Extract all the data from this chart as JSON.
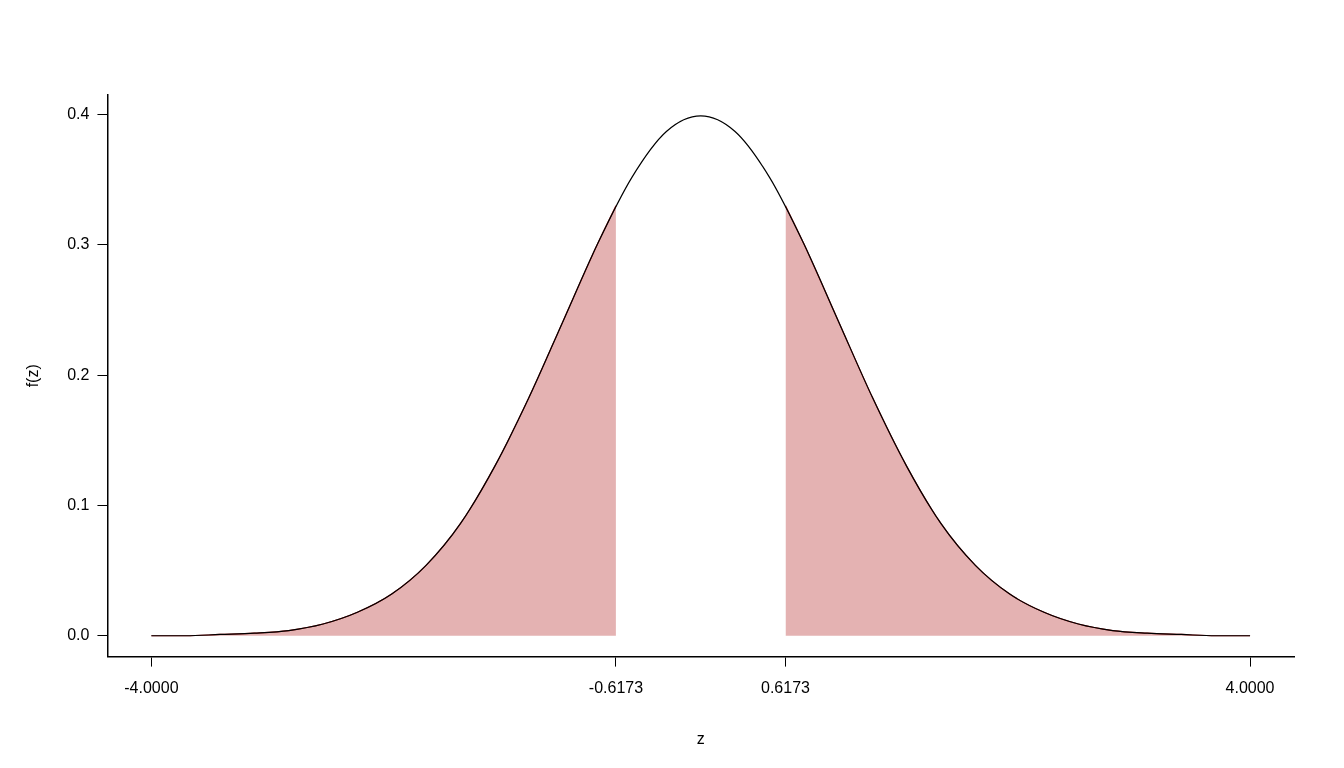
{
  "chart_data": {
    "type": "line",
    "xlabel": "z",
    "ylabel": "f(z)",
    "xlim": [
      -4.32,
      4.32
    ],
    "ylim": [
      -0.016,
      0.415
    ],
    "xticks": [
      {
        "value": -4,
        "label": "-4.0000"
      },
      {
        "value": -0.6173,
        "label": "-0.6173"
      },
      {
        "value": 0.6173,
        "label": "0.6173"
      },
      {
        "value": 4,
        "label": "4.0000"
      }
    ],
    "yticks": [
      {
        "value": 0,
        "label": "0.0"
      },
      {
        "value": 0.1,
        "label": "0.1"
      },
      {
        "value": 0.2,
        "label": "0.2"
      },
      {
        "value": 0.3,
        "label": "0.3"
      },
      {
        "value": 0.4,
        "label": "0.4"
      }
    ],
    "grid": false,
    "legend": false,
    "marker": "none",
    "line_style": "solid",
    "series": [
      {
        "type": "line",
        "color": "#000000",
        "x": [
          -4,
          -3.75,
          -3.5,
          -3.25,
          -3,
          -2.75,
          -2.5,
          -2.25,
          -2,
          -1.75,
          -1.5,
          -1.25,
          -1,
          -0.75,
          -0.5,
          -0.25,
          0,
          0.25,
          0.5,
          0.75,
          1,
          1.25,
          1.5,
          1.75,
          2,
          2.25,
          2.5,
          2.75,
          3,
          3.25,
          3.5,
          3.75,
          4
        ],
        "values": [
          0.0,
          0.0,
          0.001,
          0.002,
          0.004,
          0.009,
          0.018,
          0.032,
          0.054,
          0.086,
          0.13,
          0.183,
          0.242,
          0.301,
          0.352,
          0.387,
          0.399,
          0.387,
          0.352,
          0.301,
          0.242,
          0.183,
          0.13,
          0.086,
          0.054,
          0.032,
          0.018,
          0.009,
          0.004,
          0.002,
          0.001,
          0.0,
          0.0
        ]
      },
      {
        "type": "area",
        "color": "#b22222",
        "x": [
          -4,
          -3.75,
          -3.5,
          -3.25,
          -3,
          -2.75,
          -2.5,
          -2.25,
          -2,
          -1.75,
          -1.5,
          -1.25,
          -1,
          -0.75,
          -0.6173
        ],
        "values": [
          0.0,
          0.0,
          0.001,
          0.002,
          0.004,
          0.009,
          0.018,
          0.032,
          0.054,
          0.086,
          0.13,
          0.183,
          0.242,
          0.301,
          0.33
        ]
      },
      {
        "type": "area",
        "color": "#b22222",
        "x": [
          0.6173,
          0.75,
          1,
          1.25,
          1.5,
          1.75,
          2,
          2.25,
          2.5,
          2.75,
          3,
          3.25,
          3.5,
          3.75,
          4
        ],
        "values": [
          0.33,
          0.301,
          0.242,
          0.183,
          0.13,
          0.086,
          0.054,
          0.032,
          0.018,
          0.009,
          0.004,
          0.002,
          0.001,
          0.0,
          0.0
        ]
      }
    ]
  }
}
